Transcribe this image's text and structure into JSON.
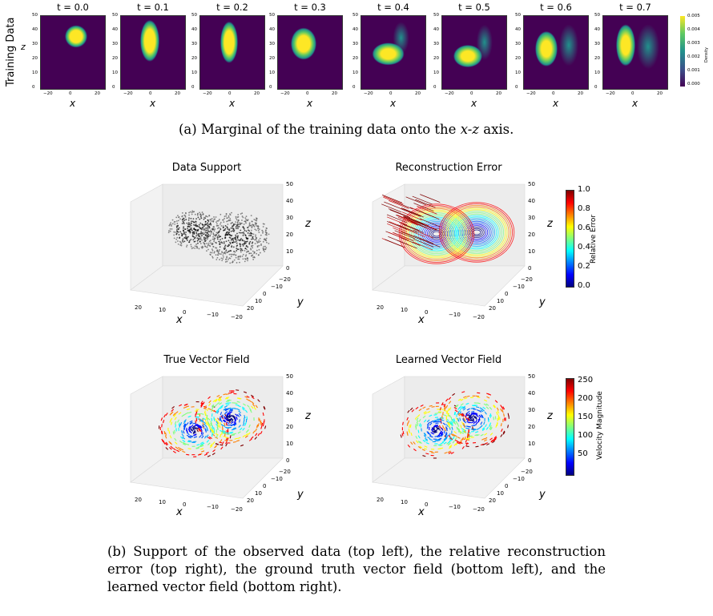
{
  "part_a": {
    "row_label": "Training Data",
    "y_axis_label": "z",
    "x_axis_label": "x",
    "y_ticks": [
      "50",
      "40",
      "30",
      "20",
      "10",
      "0"
    ],
    "x_ticks": [
      "−20",
      "0",
      "20"
    ],
    "panels": [
      {
        "title": "t = 0.0"
      },
      {
        "title": "t = 0.1"
      },
      {
        "title": "t = 0.2"
      },
      {
        "title": "t = 0.3"
      },
      {
        "title": "t = 0.4"
      },
      {
        "title": "t = 0.5"
      },
      {
        "title": "t = 0.6"
      },
      {
        "title": "t = 0.7"
      }
    ],
    "colorbar": {
      "label": "Density",
      "ticks": [
        "0.005",
        "0.004",
        "0.003",
        "0.002",
        "0.001",
        "0.000"
      ]
    },
    "caption_prefix": "(a) Marginal of the training data onto the ",
    "caption_math": "x-z",
    "caption_suffix": " axis."
  },
  "part_b": {
    "plots": [
      {
        "title": "Data Support"
      },
      {
        "title": "Reconstruction Error"
      },
      {
        "title": "True Vector Field"
      },
      {
        "title": "Learned Vector Field"
      }
    ],
    "x_label": "x",
    "y_label": "y",
    "z_label": "z",
    "x_ticks": [
      "20",
      "10",
      "0",
      "−10",
      "−20"
    ],
    "y_ticks": [
      "−20",
      "−10",
      "0",
      "10",
      "20"
    ],
    "z_ticks": [
      "50",
      "40",
      "30",
      "20",
      "10",
      "0"
    ],
    "error_colorbar": {
      "label": "Relative Error",
      "ticks": [
        "1.0",
        "0.8",
        "0.6",
        "0.4",
        "0.2",
        "0.0"
      ]
    },
    "velocity_colorbar": {
      "label": "Velocity Magnitude",
      "ticks": [
        "250",
        "200",
        "150",
        "100",
        "50"
      ]
    },
    "caption": "(b) Support of the observed data (top left), the relative reconstruction error (top right), the ground truth vector field (bottom left), and the learned vector field (bottom right)."
  }
}
